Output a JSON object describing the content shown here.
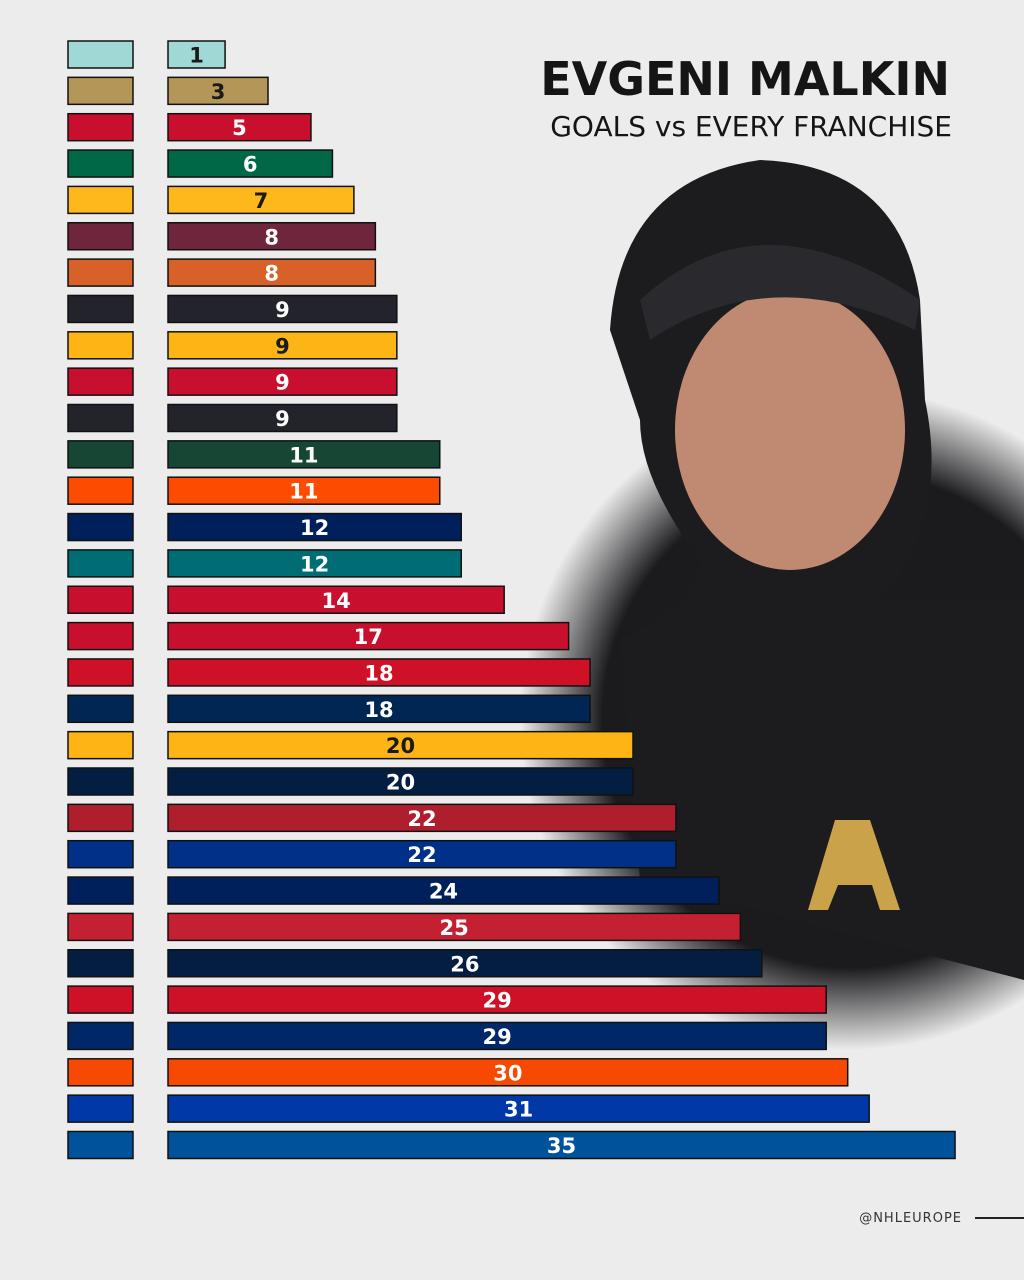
{
  "chart_data": {
    "type": "bar",
    "title": "EVGENI MALKIN",
    "subtitle": "GOALS vs EVERY FRANCHISE",
    "credit": "@NHLEUROPE",
    "values": [
      1,
      3,
      5,
      6,
      7,
      8,
      8,
      9,
      9,
      9,
      9,
      11,
      11,
      12,
      12,
      14,
      17,
      18,
      18,
      20,
      20,
      22,
      22,
      24,
      25,
      26,
      29,
      29,
      30,
      31,
      35
    ],
    "colors": [
      "#9fd8d4",
      "#b49659",
      "#c8102e",
      "#006847",
      "#ffb81c",
      "#6f263d",
      "#d8612a",
      "#23232c",
      "#fcb514",
      "#c8102e",
      "#23232c",
      "#154734",
      "#fc4c02",
      "#00205b",
      "#006d75",
      "#c8102e",
      "#c8102e",
      "#ce1126",
      "#002654",
      "#fcb514",
      "#041e42",
      "#af1e2d",
      "#003087",
      "#00205b",
      "#c52032",
      "#041e42",
      "#ce1126",
      "#002868",
      "#f74902",
      "#0038a8",
      "#00539b"
    ]
  }
}
